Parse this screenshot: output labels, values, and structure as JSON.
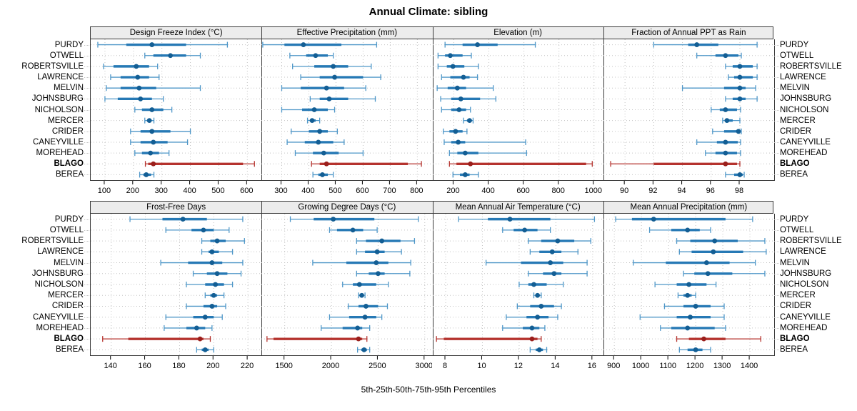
{
  "page": {
    "title": "Annual Climate: sibling",
    "footer": "5th-25th-50th-75th-95th Percentiles"
  },
  "chart_data": {
    "type": "dotplot-intervals",
    "title": "Annual Climate: sibling",
    "footer": "5th-25th-50th-75th-95th Percentiles",
    "percentiles": [
      5,
      25,
      50,
      75,
      95
    ],
    "grid": true,
    "legend_position": "none",
    "sites": [
      "PURDY",
      "OTWELL",
      "ROBERTSVILLE",
      "LAWRENCE",
      "MELVIN",
      "JOHNSBURG",
      "NICHOLSON",
      "MERCER",
      "CRIDER",
      "CANEYVILLE",
      "MOREHEAD",
      "BLAGO",
      "BEREA"
    ],
    "highlight_site": "BLAGO",
    "colors": {
      "series_whisker": "#4f97c8",
      "series_band": "#2679b5",
      "series_dot": "#135e94",
      "highlight_whisker": "#b5332e",
      "highlight_band": "#b5332e",
      "highlight_dot": "#9a1f1c",
      "grid": "#c3c3c3",
      "panel_header_bg": "#ececec",
      "border": "#3a3a3a",
      "text": "#000000"
    },
    "panels": [
      {
        "id": "design-freeze-index",
        "title": "Design Freeze Index (°C)",
        "xlim": [
          50,
          650
        ],
        "ticks": [
          100,
          200,
          300,
          400,
          500,
          600
        ],
        "values": [
          [
            75,
            175,
            265,
            385,
            530
          ],
          [
            240,
            270,
            330,
            385,
            435
          ],
          [
            95,
            130,
            210,
            255,
            285
          ],
          [
            120,
            155,
            215,
            255,
            290
          ],
          [
            105,
            155,
            220,
            280,
            435
          ],
          [
            100,
            145,
            225,
            265,
            305
          ],
          [
            205,
            230,
            265,
            305,
            335
          ],
          [
            240,
            248,
            256,
            263,
            272
          ],
          [
            190,
            225,
            265,
            330,
            400
          ],
          [
            190,
            225,
            270,
            320,
            390
          ],
          [
            205,
            230,
            260,
            290,
            325
          ],
          [
            242,
            252,
            270,
            585,
            625
          ],
          [
            222,
            235,
            245,
            262,
            272
          ]
        ]
      },
      {
        "id": "effective-precipitation",
        "title": "Effective Precipitation (mm)",
        "xlim": [
          225,
          855
        ],
        "ticks": [
          300,
          400,
          500,
          600,
          700,
          800
        ],
        "values": [
          [
            230,
            310,
            380,
            520,
            650
          ],
          [
            330,
            390,
            425,
            470,
            490
          ],
          [
            340,
            420,
            490,
            545,
            630
          ],
          [
            370,
            440,
            495,
            600,
            665
          ],
          [
            300,
            370,
            465,
            530,
            610
          ],
          [
            405,
            440,
            475,
            545,
            645
          ],
          [
            300,
            375,
            420,
            470,
            495
          ],
          [
            395,
            405,
            412,
            425,
            440
          ],
          [
            335,
            400,
            440,
            470,
            505
          ],
          [
            320,
            385,
            435,
            490,
            530
          ],
          [
            350,
            415,
            455,
            510,
            600
          ],
          [
            410,
            440,
            465,
            765,
            815
          ],
          [
            415,
            435,
            450,
            470,
            490
          ]
        ]
      },
      {
        "id": "elevation",
        "title": "Elevation (m)",
        "xlim": [
          80,
          1055
        ],
        "ticks": [
          200,
          400,
          600,
          800,
          1000
        ],
        "values": [
          [
            150,
            250,
            335,
            450,
            665
          ],
          [
            110,
            150,
            180,
            250,
            300
          ],
          [
            110,
            160,
            195,
            260,
            340
          ],
          [
            130,
            180,
            255,
            290,
            335
          ],
          [
            105,
            165,
            220,
            270,
            425
          ],
          [
            125,
            185,
            240,
            350,
            440
          ],
          [
            130,
            185,
            230,
            270,
            295
          ],
          [
            255,
            275,
            290,
            300,
            310
          ],
          [
            140,
            175,
            210,
            250,
            275
          ],
          [
            145,
            185,
            225,
            265,
            610
          ],
          [
            175,
            220,
            265,
            340,
            615
          ],
          [
            175,
            215,
            295,
            955,
            990
          ],
          [
            195,
            235,
            265,
            290,
            340
          ]
        ]
      },
      {
        "id": "fraction-annual-ppt-as-rain",
        "title": "Fraction of Annual PPT as Rain",
        "xlim": [
          88.5,
          100.4
        ],
        "ticks": [
          90,
          92,
          94,
          96,
          98
        ],
        "values": [
          [
            92.0,
            94.4,
            95.0,
            96.5,
            99.2
          ],
          [
            95.0,
            96.3,
            97.0,
            97.9,
            98.1
          ],
          [
            97.0,
            97.5,
            98.0,
            98.9,
            99.2
          ],
          [
            97.2,
            97.6,
            98.0,
            98.9,
            99.2
          ],
          [
            94.0,
            96.9,
            98.0,
            98.4,
            99.1
          ],
          [
            97.0,
            97.5,
            98.0,
            98.4,
            99.2
          ],
          [
            96.0,
            96.6,
            97.0,
            97.8,
            98.05
          ],
          [
            96.8,
            96.95,
            97.1,
            97.5,
            98.0
          ],
          [
            96.1,
            96.9,
            97.9,
            98.05,
            98.1
          ],
          [
            95.0,
            96.4,
            97.0,
            97.85,
            98.05
          ],
          [
            95.6,
            96.3,
            97.0,
            97.8,
            98.05
          ],
          [
            89.0,
            92.0,
            97.0,
            97.8,
            98.0
          ],
          [
            97.0,
            97.6,
            98.0,
            98.2,
            98.3
          ]
        ]
      },
      {
        "id": "frost-free-days",
        "title": "Frost-Free Days",
        "xlim": [
          128,
          228
        ],
        "ticks": [
          140,
          160,
          180,
          200,
          220
        ],
        "values": [
          [
            151,
            170,
            182,
            196,
            217
          ],
          [
            172,
            187,
            194,
            200,
            209
          ],
          [
            193,
            198,
            202,
            207,
            218
          ],
          [
            193,
            197,
            199,
            203,
            211
          ],
          [
            169,
            185,
            199,
            205,
            217
          ],
          [
            188,
            196,
            202,
            208,
            216
          ],
          [
            184,
            195,
            201,
            206,
            211
          ],
          [
            195,
            198,
            200,
            202,
            206
          ],
          [
            184,
            194,
            199,
            202,
            207
          ],
          [
            172,
            188,
            195,
            200,
            205
          ],
          [
            171,
            184,
            190,
            195,
            199
          ],
          [
            135,
            150,
            192,
            194,
            198
          ],
          [
            190,
            193,
            195,
            197,
            200
          ]
        ]
      },
      {
        "id": "growing-degree-days",
        "title": "Growing Degree Days (°C)",
        "xlim": [
          1250,
          3080
        ],
        "ticks": [
          1500,
          2000,
          2500,
          3000
        ],
        "values": [
          [
            1560,
            1810,
            2020,
            2460,
            2930
          ],
          [
            1980,
            2060,
            2230,
            2340,
            2490
          ],
          [
            2270,
            2370,
            2540,
            2740,
            2890
          ],
          [
            2270,
            2360,
            2490,
            2570,
            2750
          ],
          [
            1800,
            2160,
            2480,
            2610,
            2850
          ],
          [
            2270,
            2400,
            2500,
            2570,
            2840
          ],
          [
            2120,
            2230,
            2300,
            2480,
            2610
          ],
          [
            2290,
            2310,
            2325,
            2340,
            2360
          ],
          [
            2180,
            2290,
            2370,
            2500,
            2600
          ],
          [
            1980,
            2190,
            2360,
            2480,
            2540
          ],
          [
            1890,
            2120,
            2280,
            2330,
            2410
          ],
          [
            1310,
            1380,
            2290,
            2330,
            2380
          ],
          [
            2280,
            2320,
            2350,
            2380,
            2410
          ]
        ]
      },
      {
        "id": "mean-annual-air-temperature",
        "title": "Mean Annual Air Temperature (°C)",
        "xlim": [
          7.3,
          16.6
        ],
        "ticks": [
          8,
          10,
          12,
          14,
          16
        ],
        "values": [
          [
            8.7,
            10.3,
            11.5,
            13.7,
            16.1
          ],
          [
            11.1,
            11.7,
            12.3,
            13.0,
            13.7
          ],
          [
            12.5,
            13.2,
            14.1,
            15.0,
            15.9
          ],
          [
            12.6,
            13.1,
            13.8,
            14.3,
            15.2
          ],
          [
            10.2,
            12.1,
            13.7,
            14.4,
            15.7
          ],
          [
            12.5,
            13.3,
            13.9,
            14.3,
            15.7
          ],
          [
            12.0,
            12.5,
            12.8,
            13.5,
            14.4
          ],
          [
            12.8,
            12.9,
            13.0,
            13.1,
            13.2
          ],
          [
            11.9,
            12.6,
            13.2,
            13.9,
            14.3
          ],
          [
            11.3,
            12.4,
            13.0,
            13.6,
            14.1
          ],
          [
            11.1,
            12.2,
            12.7,
            13.1,
            13.4
          ],
          [
            7.5,
            7.9,
            12.7,
            13.0,
            13.2
          ],
          [
            12.6,
            12.9,
            13.1,
            13.3,
            13.5
          ]
        ]
      },
      {
        "id": "mean-annual-precipitation",
        "title": "Mean Annual Precipitation (mm)",
        "xlim": [
          860,
          1490
        ],
        "ticks": [
          900,
          1000,
          1100,
          1200,
          1300,
          1400
        ],
        "values": [
          [
            905,
            965,
            1045,
            1310,
            1410
          ],
          [
            1030,
            1110,
            1170,
            1215,
            1255
          ],
          [
            1130,
            1180,
            1270,
            1355,
            1455
          ],
          [
            1140,
            1185,
            1265,
            1375,
            1460
          ],
          [
            970,
            1090,
            1240,
            1325,
            1420
          ],
          [
            1155,
            1195,
            1245,
            1335,
            1455
          ],
          [
            1050,
            1130,
            1175,
            1240,
            1275
          ],
          [
            1135,
            1155,
            1170,
            1185,
            1200
          ],
          [
            1085,
            1155,
            1200,
            1255,
            1305
          ],
          [
            995,
            1130,
            1180,
            1255,
            1305
          ],
          [
            1070,
            1110,
            1170,
            1270,
            1310
          ],
          [
            1130,
            1175,
            1230,
            1310,
            1440
          ],
          [
            1140,
            1170,
            1200,
            1225,
            1255
          ]
        ]
      }
    ]
  }
}
